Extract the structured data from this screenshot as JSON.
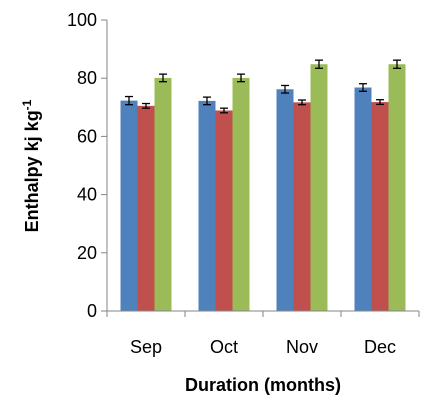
{
  "chart_data": {
    "type": "bar",
    "title": "",
    "xlabel": "Duration (months)",
    "ylabel_main": "Enthalpy kj kg",
    "ylabel_sup": "-1",
    "categories": [
      "Sep",
      "Oct",
      "Nov",
      "Dec"
    ],
    "ylim": [
      0,
      100
    ],
    "yticks": [
      0,
      20,
      40,
      60,
      80,
      100
    ],
    "grid": false,
    "legend": "none",
    "series": [
      {
        "values": [
          72.3,
          72.2,
          76.2,
          76.8
        ],
        "errors": [
          1.4,
          1.3,
          1.3,
          1.3
        ],
        "color": "#4f81bd"
      },
      {
        "values": [
          70.5,
          68.9,
          71.7,
          71.8
        ],
        "errors": [
          0.8,
          0.8,
          0.8,
          0.8
        ],
        "color": "#c0504d"
      },
      {
        "values": [
          80.1,
          80.1,
          84.8,
          84.8
        ],
        "errors": [
          1.3,
          1.3,
          1.4,
          1.4
        ],
        "color": "#9bbb59"
      }
    ]
  }
}
